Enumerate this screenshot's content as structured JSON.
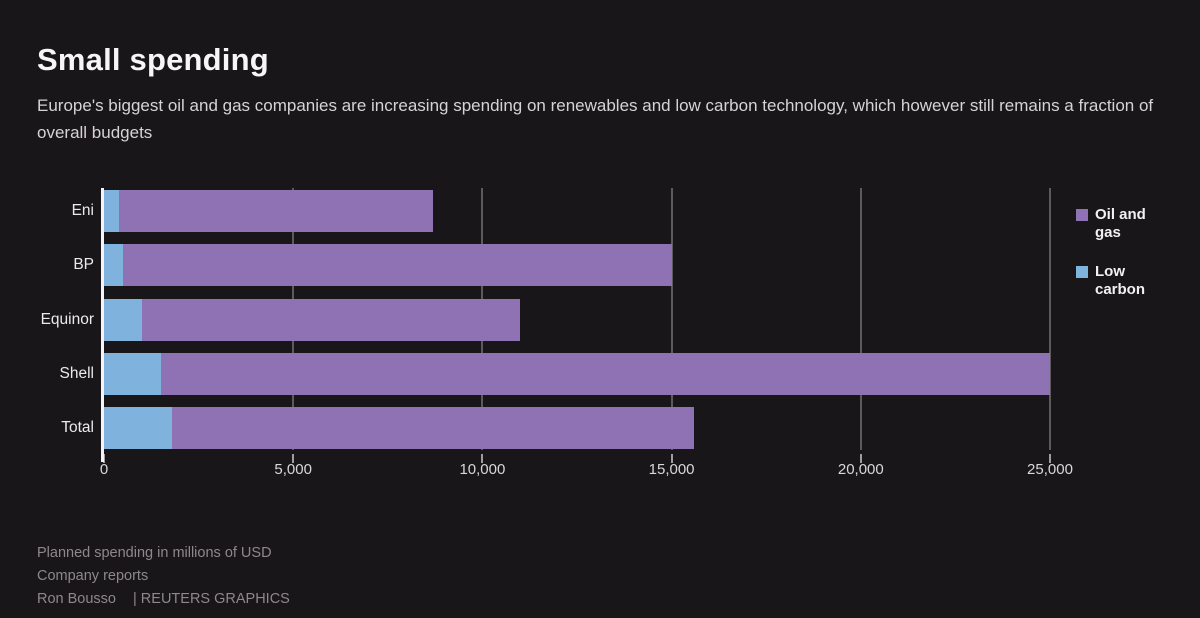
{
  "header": {
    "title": "Small spending",
    "subtitle": "Europe's biggest oil and gas companies are increasing spending on renewables and low carbon technology, which however still remains a fraction of overall budgets"
  },
  "chart_data": {
    "type": "bar",
    "orientation": "horizontal",
    "stacked": true,
    "title": "Small spending",
    "xlabel": "",
    "ylabel": "",
    "units": "millions of USD",
    "categories": [
      "Eni",
      "BP",
      "Equinor",
      "Shell",
      "Total"
    ],
    "series": [
      {
        "name": "Low carbon",
        "color": "#7fb2dd",
        "values": [
          400,
          500,
          1000,
          1500,
          1800
        ]
      },
      {
        "name": "Oil and gas",
        "color": "#8e72b4",
        "values": [
          8300,
          14500,
          10000,
          23500,
          13800
        ]
      }
    ],
    "bar_totals": [
      8700,
      15000,
      11000,
      25000,
      15600
    ],
    "xlim": [
      0,
      25000
    ],
    "x_ticks": [
      0,
      5000,
      10000,
      15000,
      20000,
      25000
    ],
    "x_tick_labels": [
      "0",
      "5,000",
      "10,000",
      "15,000",
      "20,000",
      "25,000"
    ],
    "grid": "vertical",
    "legend_position": "right",
    "legend": [
      {
        "label": "Oil and gas",
        "color": "#8e72b4"
      },
      {
        "label": "Low carbon",
        "color": "#7fb2dd"
      }
    ]
  },
  "footer": {
    "note": "Planned spending in millions of USD",
    "source": "Company reports",
    "author": "Ron Bousso",
    "brand": "| REUTERS GRAPHICS"
  },
  "colors": {
    "background": "#19161a",
    "oil_and_gas": "#8e72b4",
    "low_carbon": "#7fb2dd",
    "gridline": "#5d5a5d",
    "axis": "#f5f3f5"
  }
}
